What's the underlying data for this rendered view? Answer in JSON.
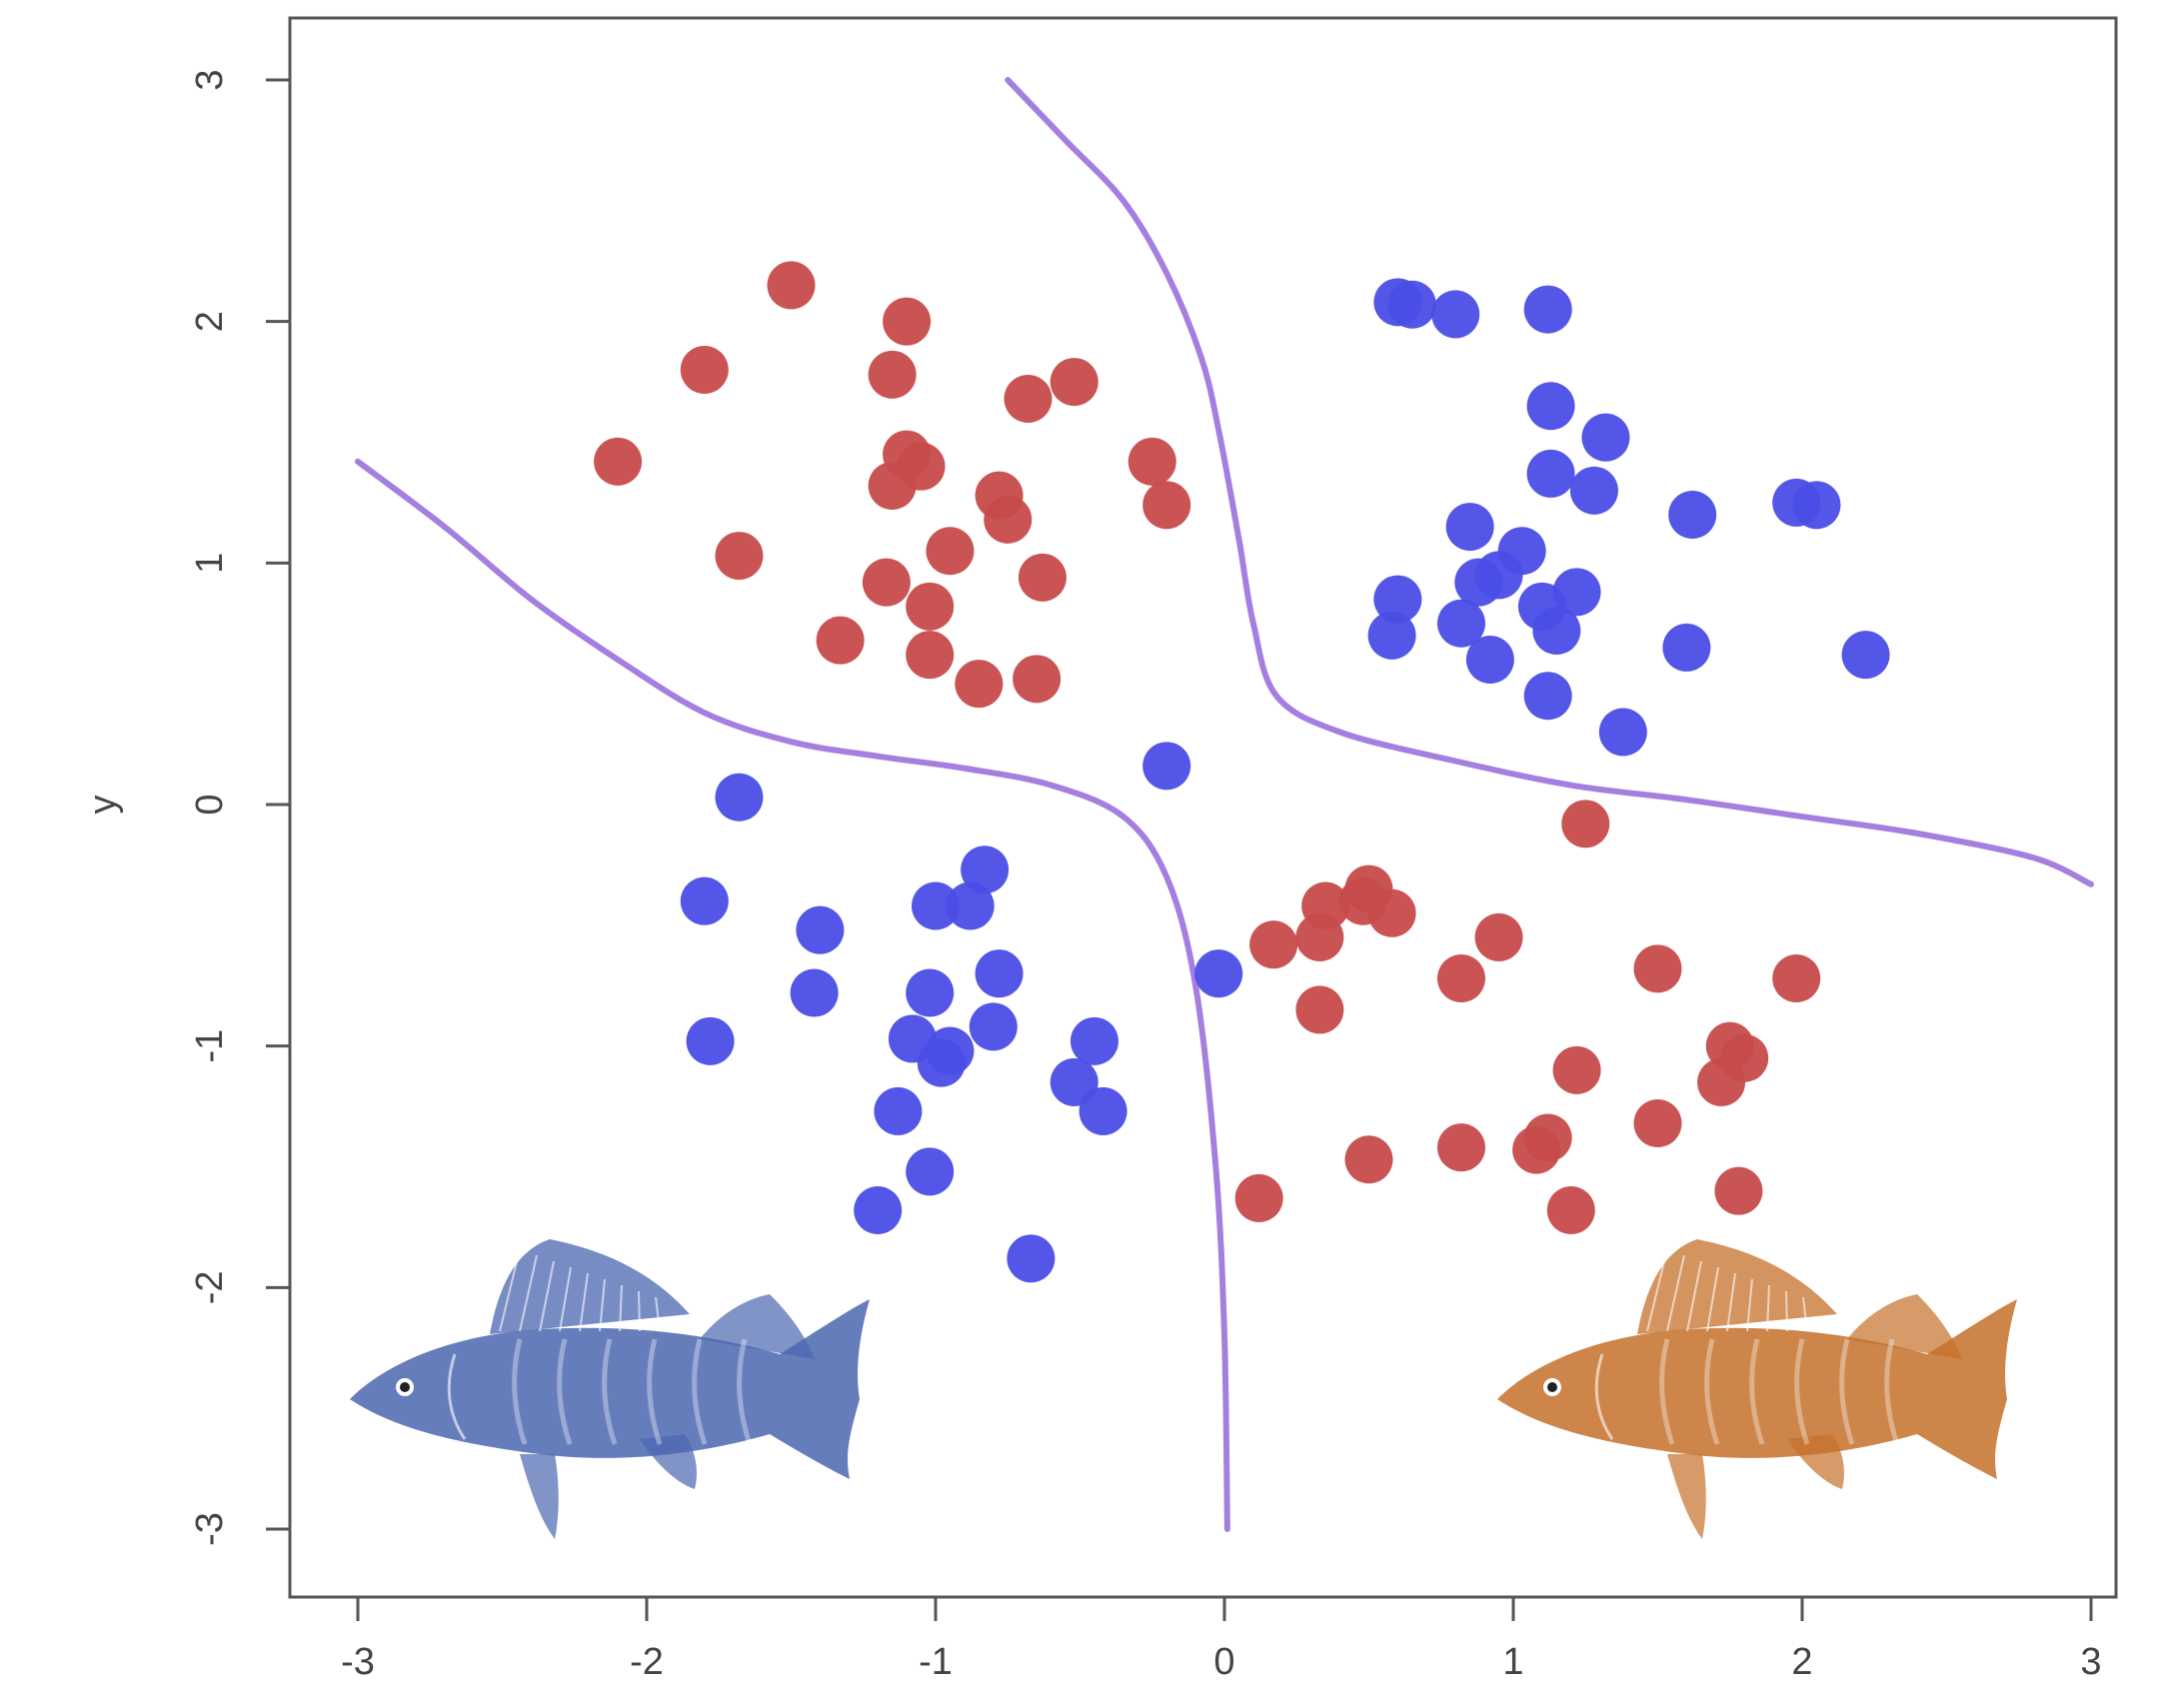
{
  "chart_data": {
    "type": "scatter",
    "title": "",
    "xlabel": "",
    "ylabel": "y",
    "xlim": [
      -3,
      3
    ],
    "ylim": [
      -3,
      3
    ],
    "x_ticks": [
      "-3",
      "-2",
      "-1",
      "0",
      "1",
      "2",
      "3"
    ],
    "y_ticks": [
      "-3",
      "-2",
      "-1",
      "0",
      "1",
      "2",
      "3"
    ],
    "grid": false,
    "legend": "none",
    "series": [
      {
        "color": "#c74b4b",
        "points": [
          [
            -1.5,
            2.15
          ],
          [
            -1.1,
            2.0
          ],
          [
            -1.8,
            1.8
          ],
          [
            -1.15,
            1.78
          ],
          [
            -0.68,
            1.68
          ],
          [
            -0.52,
            1.75
          ],
          [
            -2.1,
            1.42
          ],
          [
            -1.1,
            1.45
          ],
          [
            -1.05,
            1.4
          ],
          [
            -1.15,
            1.32
          ],
          [
            -0.25,
            1.42
          ],
          [
            -0.2,
            1.24
          ],
          [
            -0.78,
            1.28
          ],
          [
            -0.75,
            1.18
          ],
          [
            -1.68,
            1.03
          ],
          [
            -0.95,
            1.05
          ],
          [
            -1.17,
            0.92
          ],
          [
            -1.02,
            0.82
          ],
          [
            -0.63,
            0.94
          ],
          [
            -1.33,
            0.68
          ],
          [
            -1.02,
            0.62
          ],
          [
            -0.85,
            0.5
          ],
          [
            -0.65,
            0.52
          ],
          [
            1.25,
            -0.08
          ],
          [
            0.35,
            -0.42
          ],
          [
            0.5,
            -0.35
          ],
          [
            0.58,
            -0.45
          ],
          [
            0.48,
            -0.4
          ],
          [
            0.17,
            -0.58
          ],
          [
            0.33,
            -0.55
          ],
          [
            0.95,
            -0.55
          ],
          [
            0.82,
            -0.72
          ],
          [
            1.5,
            -0.68
          ],
          [
            1.98,
            -0.72
          ],
          [
            0.33,
            -0.85
          ],
          [
            1.22,
            -1.1
          ],
          [
            1.75,
            -1.0
          ],
          [
            1.8,
            -1.05
          ],
          [
            1.72,
            -1.15
          ],
          [
            1.12,
            -1.38
          ],
          [
            1.08,
            -1.43
          ],
          [
            1.5,
            -1.32
          ],
          [
            0.82,
            -1.42
          ],
          [
            0.5,
            -1.47
          ],
          [
            0.12,
            -1.63
          ],
          [
            1.2,
            -1.68
          ],
          [
            1.78,
            -1.6
          ]
        ]
      },
      {
        "color": "#4a4de6",
        "points": [
          [
            0.6,
            2.08
          ],
          [
            0.65,
            2.07
          ],
          [
            0.8,
            2.03
          ],
          [
            1.12,
            2.05
          ],
          [
            1.13,
            1.65
          ],
          [
            1.32,
            1.52
          ],
          [
            1.13,
            1.37
          ],
          [
            1.28,
            1.3
          ],
          [
            1.62,
            1.2
          ],
          [
            1.98,
            1.25
          ],
          [
            2.05,
            1.24
          ],
          [
            0.85,
            1.15
          ],
          [
            1.03,
            1.05
          ],
          [
            0.88,
            0.92
          ],
          [
            0.95,
            0.95
          ],
          [
            1.22,
            0.88
          ],
          [
            0.6,
            0.85
          ],
          [
            0.82,
            0.75
          ],
          [
            1.1,
            0.82
          ],
          [
            1.15,
            0.72
          ],
          [
            0.58,
            0.7
          ],
          [
            0.92,
            0.6
          ],
          [
            1.6,
            0.65
          ],
          [
            2.22,
            0.62
          ],
          [
            1.12,
            0.45
          ],
          [
            1.38,
            0.3
          ],
          [
            -0.2,
            0.16
          ],
          [
            -1.68,
            0.03
          ],
          [
            -0.83,
            -0.27
          ],
          [
            -1.8,
            -0.4
          ],
          [
            -1.4,
            -0.52
          ],
          [
            -1.0,
            -0.42
          ],
          [
            -0.88,
            -0.42
          ],
          [
            -0.78,
            -0.7
          ],
          [
            -0.02,
            -0.7
          ],
          [
            -1.42,
            -0.78
          ],
          [
            -1.02,
            -0.78
          ],
          [
            -0.8,
            -0.92
          ],
          [
            -1.08,
            -0.97
          ],
          [
            -0.95,
            -1.02
          ],
          [
            -0.98,
            -1.07
          ],
          [
            -1.78,
            -0.98
          ],
          [
            -0.45,
            -0.98
          ],
          [
            -0.52,
            -1.15
          ],
          [
            -0.42,
            -1.27
          ],
          [
            -1.13,
            -1.27
          ],
          [
            -1.02,
            -1.52
          ],
          [
            -1.2,
            -1.68
          ],
          [
            -0.67,
            -1.88
          ]
        ]
      }
    ],
    "boundary": [
      {
        "color": "#a57fe0",
        "points": [
          [
            -3.0,
            1.42
          ],
          [
            -2.7,
            1.15
          ],
          [
            -2.4,
            0.85
          ],
          [
            -2.1,
            0.6
          ],
          [
            -1.8,
            0.38
          ],
          [
            -1.5,
            0.26
          ],
          [
            -1.2,
            0.2
          ],
          [
            -0.9,
            0.15
          ],
          [
            -0.6,
            0.08
          ],
          [
            -0.35,
            -0.05
          ],
          [
            -0.2,
            -0.3
          ],
          [
            -0.1,
            -0.75
          ],
          [
            -0.03,
            -1.5
          ],
          [
            0.0,
            -2.2
          ],
          [
            0.01,
            -3.0
          ]
        ]
      },
      {
        "color": "#a57fe0",
        "points": [
          [
            -0.75,
            3.0
          ],
          [
            -0.55,
            2.75
          ],
          [
            -0.35,
            2.5
          ],
          [
            -0.2,
            2.2
          ],
          [
            -0.08,
            1.85
          ],
          [
            -0.02,
            1.55
          ],
          [
            0.05,
            1.1
          ],
          [
            0.1,
            0.75
          ],
          [
            0.18,
            0.45
          ],
          [
            0.4,
            0.3
          ],
          [
            0.8,
            0.18
          ],
          [
            1.2,
            0.08
          ],
          [
            1.6,
            0.02
          ],
          [
            2.0,
            -0.05
          ],
          [
            2.4,
            -0.12
          ],
          [
            2.8,
            -0.22
          ],
          [
            3.0,
            -0.33
          ]
        ]
      }
    ]
  },
  "illustrations": [
    {
      "name": "blue-perch-fish-icon",
      "color": "#4b66b0"
    },
    {
      "name": "orange-perch-fish-icon",
      "color": "#c4702a"
    }
  ]
}
